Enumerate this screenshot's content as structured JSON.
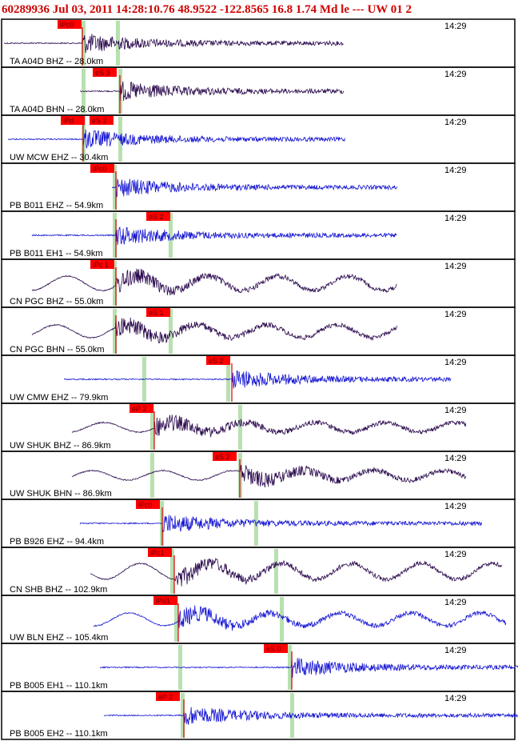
{
  "header": {
    "title": "60289936 Jul 03, 2011 14:28:10.76   48.9522 -122.8565 16.8 1.74 Md le --- UW 01   2"
  },
  "panels": [
    {
      "station": "TA A04D BHZ -- 28.0km",
      "time": "14:29",
      "picks": [
        "iPc0"
      ],
      "color": "#2b0a4e"
    },
    {
      "station": "TA A04D BHN -- 28.0km",
      "time": "14:29",
      "picks": [
        "eS 3"
      ],
      "color": "#2b0a4e"
    },
    {
      "station": "UW MCW EHZ -- 30.4km",
      "time": "14:29",
      "picks": [
        "iPd",
        "eS 2"
      ],
      "color": "#1414d2"
    },
    {
      "station": "PB B011 EHZ -- 54.9km",
      "time": "14:29",
      "picks": [
        "iPc0"
      ],
      "color": "#1414d2"
    },
    {
      "station": "PB B011 EH1 -- 54.9km",
      "time": "14:29",
      "picks": [
        "eS 2"
      ],
      "color": "#1414d2"
    },
    {
      "station": "CN PGC BHZ -- 55.0km",
      "time": "14:29",
      "picks": [
        "iPc 1"
      ],
      "color": "#2b0a4e"
    },
    {
      "station": "CN PGC BHN -- 55.0km",
      "time": "14:29",
      "picks": [
        "eS 1"
      ],
      "color": "#2b0a4e"
    },
    {
      "station": "UW CMW EHZ -- 79.9km",
      "time": "14:29",
      "picks": [
        "eS 2"
      ],
      "color": "#1414d2"
    },
    {
      "station": "UW SHUK BHZ -- 86.9km",
      "time": "14:29",
      "picks": [
        "eP 2"
      ],
      "color": "#2b0a4e"
    },
    {
      "station": "UW SHUK BHN -- 86.9km",
      "time": "14:29",
      "picks": [
        "eS 2"
      ],
      "color": "#2b0a4e"
    },
    {
      "station": "PB B926 EHZ -- 94.4km",
      "time": "14:29",
      "picks": [
        "iPc0"
      ],
      "color": "#1414d2"
    },
    {
      "station": "CN SHB BHZ -- 102.9km",
      "time": "14:29",
      "picks": [
        "iPc1"
      ],
      "color": "#2b0a4e"
    },
    {
      "station": "UW BLN EHZ -- 105.4km",
      "time": "14:29",
      "picks": [
        "iPd1"
      ],
      "color": "#1414d2"
    },
    {
      "station": "PB B005 EH1 -- 110.1km",
      "time": "14:29",
      "picks": [
        "eS 0"
      ],
      "color": "#1414d2"
    },
    {
      "station": "PB B005 EH2 -- 110.1km",
      "time": "14:29",
      "picks": [
        "eP 2"
      ],
      "color": "#1414d2"
    }
  ]
}
